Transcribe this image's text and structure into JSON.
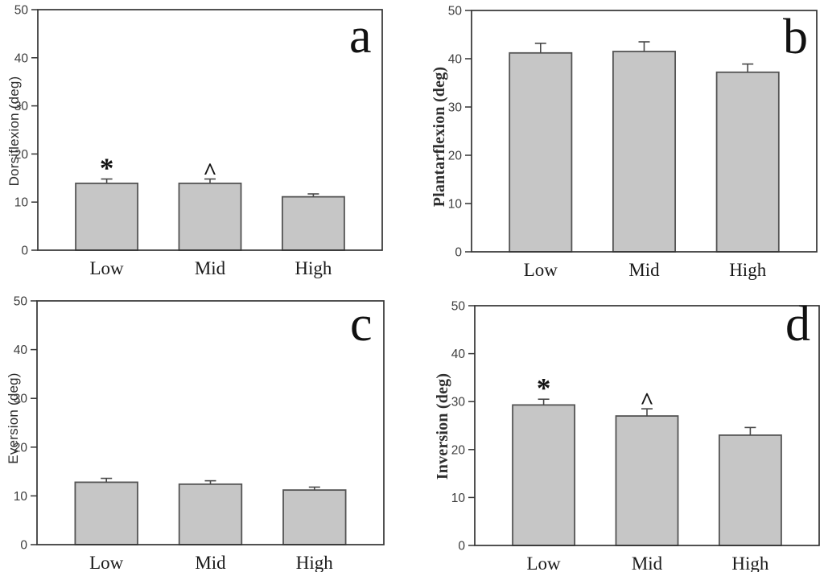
{
  "figure": {
    "colors": {
      "background": "#ffffff",
      "bar_fill": "#c6c6c6",
      "bar_stroke": "#545454",
      "frame": "#333333",
      "error_bar": "#474747",
      "tick_text": "#3d3d3d",
      "label_text": "#1a1a1a"
    }
  },
  "chart_data": [
    {
      "panel": "a",
      "type": "bar",
      "ylabel": "Dorsiflexion (deg)",
      "ylabel_font": "sans",
      "xlabel": "",
      "categories": [
        "Low",
        "Mid",
        "High"
      ],
      "values": [
        13.9,
        13.9,
        11.1
      ],
      "errors": [
        0.9,
        0.9,
        0.6
      ],
      "annotations": [
        "*",
        "^",
        ""
      ],
      "ylim": [
        0,
        50
      ],
      "yticks": [
        0,
        10,
        20,
        30,
        40,
        50
      ],
      "grid": false,
      "legend": null
    },
    {
      "panel": "b",
      "type": "bar",
      "ylabel": "Plantarflexion (deg)",
      "ylabel_font": "serif",
      "xlabel": "",
      "categories": [
        "Low",
        "Mid",
        "High"
      ],
      "values": [
        41.2,
        41.5,
        37.2
      ],
      "errors": [
        2.0,
        2.0,
        1.7
      ],
      "annotations": [
        "",
        "",
        ""
      ],
      "ylim": [
        0,
        50
      ],
      "yticks": [
        0,
        10,
        20,
        30,
        40,
        50
      ],
      "grid": false,
      "legend": null
    },
    {
      "panel": "c",
      "type": "bar",
      "ylabel": "Eversion (deg)",
      "ylabel_font": "sans",
      "xlabel": "",
      "categories": [
        "Low",
        "Mid",
        "High"
      ],
      "values": [
        12.8,
        12.4,
        11.2
      ],
      "errors": [
        0.8,
        0.7,
        0.6
      ],
      "annotations": [
        "",
        "",
        ""
      ],
      "ylim": [
        0,
        50
      ],
      "yticks": [
        0,
        10,
        20,
        30,
        40,
        50
      ],
      "grid": false,
      "legend": null
    },
    {
      "panel": "d",
      "type": "bar",
      "ylabel": "Inversion (deg)",
      "ylabel_font": "serif",
      "xlabel": "",
      "categories": [
        "Low",
        "Mid",
        "High"
      ],
      "values": [
        29.3,
        27.0,
        23.0
      ],
      "errors": [
        1.2,
        1.5,
        1.6
      ],
      "annotations": [
        "*",
        "^",
        ""
      ],
      "ylim": [
        0,
        50
      ],
      "yticks": [
        0,
        10,
        20,
        30,
        40,
        50
      ],
      "grid": false,
      "legend": null
    }
  ]
}
